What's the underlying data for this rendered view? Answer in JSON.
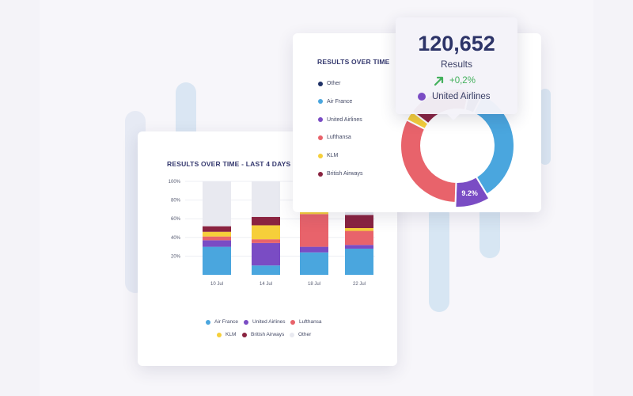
{
  "colors": {
    "air_france": "#4aa6de",
    "united_airlines": "#7a4cc4",
    "lufthansa": "#e8636b",
    "klm": "#f6cf3a",
    "british_airways": "#8a2340",
    "other": "#e8e9f0",
    "other_legend": "#1f3166",
    "accent_up": "#43b05c"
  },
  "bar_card": {
    "title": "RESULTS OVER TIME - LAST 4 DAYS",
    "legend": [
      {
        "label": "Air France",
        "color": "#4aa6de"
      },
      {
        "label": "United Airlines",
        "color": "#7a4cc4"
      },
      {
        "label": "Lufthansa",
        "color": "#e8636b"
      },
      {
        "label": "KLM",
        "color": "#f6cf3a"
      },
      {
        "label": "British Airways",
        "color": "#8a2340"
      },
      {
        "label": "Other",
        "color": "#e8e9f0"
      }
    ]
  },
  "donut_card": {
    "title": "RESULTS OVER TIME",
    "legend": [
      {
        "label": "Other",
        "color": "#1f3166"
      },
      {
        "label": "Air France",
        "color": "#4aa6de"
      },
      {
        "label": "United Airlines",
        "color": "#7a4cc4"
      },
      {
        "label": "Lufthansa",
        "color": "#e8636b"
      },
      {
        "label": "KLM",
        "color": "#f6cf3a"
      },
      {
        "label": "British Airways",
        "color": "#8a2340"
      }
    ],
    "highlight_label": "9.2%"
  },
  "tooltip": {
    "value": "120,652",
    "label": "Results",
    "change": "+0,2%",
    "change_icon": "arrow-up-right-icon",
    "series": "United Airlines",
    "series_color": "#7a4cc4"
  },
  "chart_data": [
    {
      "type": "bar",
      "stacked": true,
      "title": "RESULTS OVER TIME - LAST 4 DAYS",
      "categories": [
        "10 Jul",
        "14 Jul",
        "18 Jul",
        "22 Jul"
      ],
      "y_ticks": [
        "20%",
        "40%",
        "60%",
        "80%",
        "100%"
      ],
      "ylim": [
        0,
        100
      ],
      "grid": true,
      "legend_position": "bottom",
      "series": [
        {
          "name": "Air France",
          "values": [
            30,
            10,
            24,
            28
          ]
        },
        {
          "name": "United Airlines",
          "values": [
            7,
            24,
            6,
            4
          ]
        },
        {
          "name": "Lufthansa",
          "values": [
            4,
            4,
            35,
            15
          ]
        },
        {
          "name": "KLM",
          "values": [
            5,
            15,
            8,
            3
          ]
        },
        {
          "name": "British Airways",
          "values": [
            6,
            9,
            12,
            14
          ]
        },
        {
          "name": "Other",
          "values": [
            48,
            38,
            15,
            36
          ]
        }
      ]
    },
    {
      "type": "pie",
      "donut": true,
      "title": "RESULTS OVER TIME",
      "legend_position": "left",
      "slices": [
        {
          "name": "Other",
          "value": 4
        },
        {
          "name": "Air France",
          "value": 34
        },
        {
          "name": "United Airlines",
          "value": 9.2
        },
        {
          "name": "Lufthansa",
          "value": 32
        },
        {
          "name": "KLM",
          "value": 2.8
        },
        {
          "name": "British Airways",
          "value": 18
        }
      ],
      "highlighted": "United Airlines"
    }
  ]
}
